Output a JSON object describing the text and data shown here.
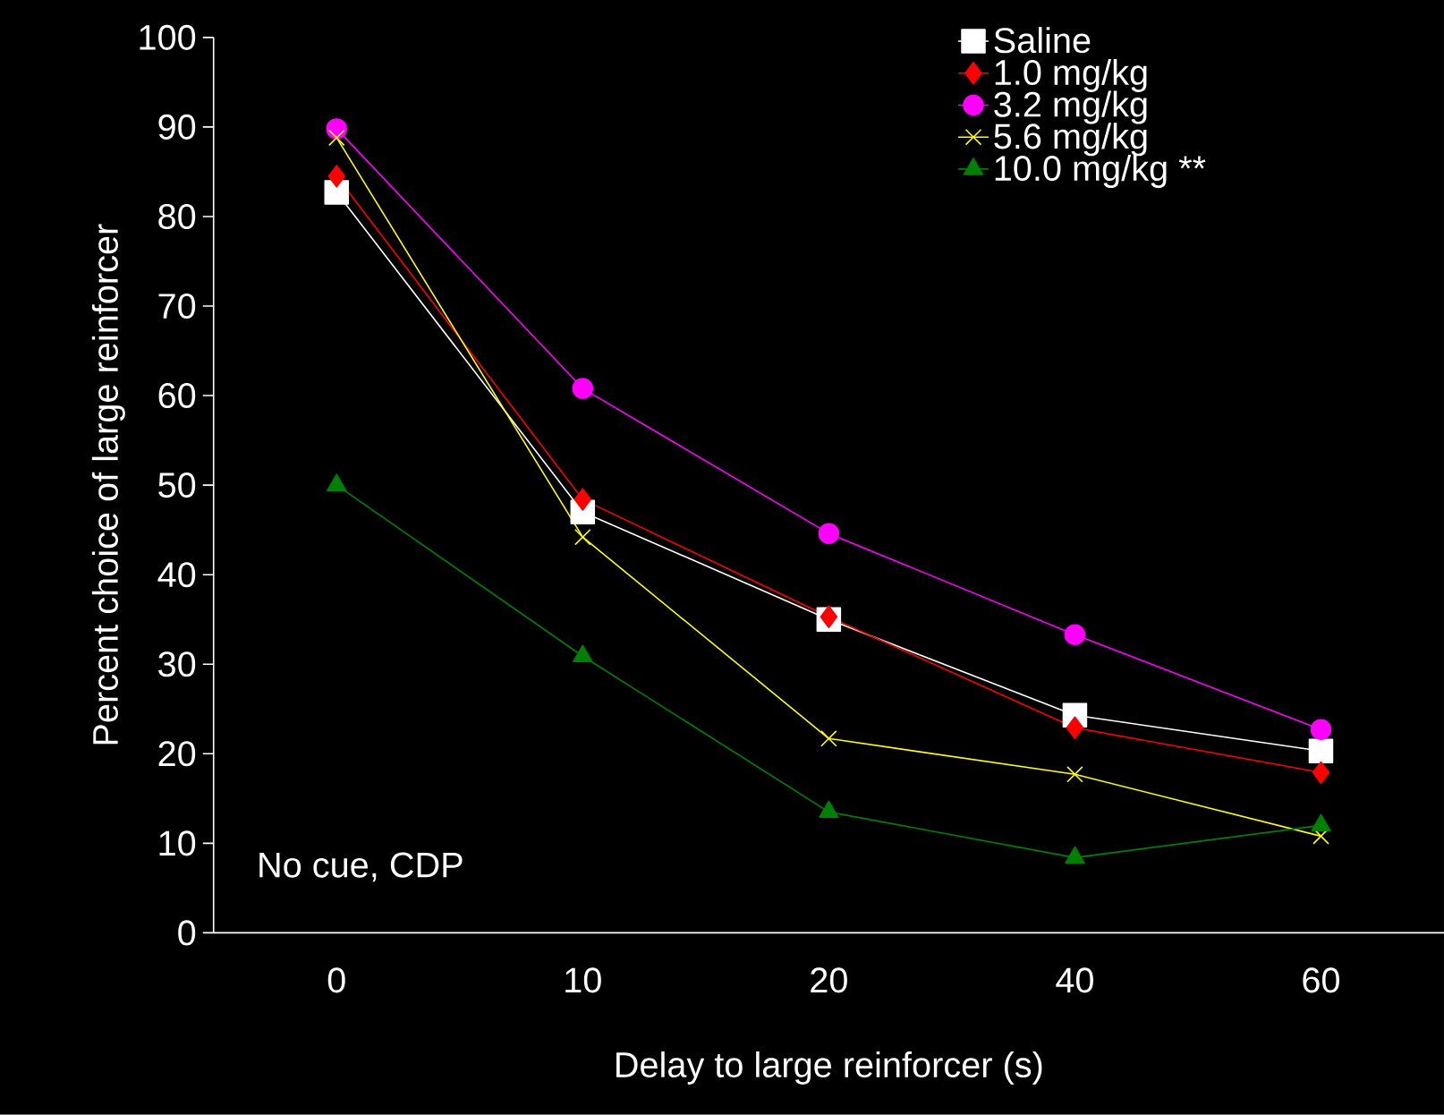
{
  "chart_data": {
    "type": "line",
    "ylabel": "Percent choice of large reinforcer",
    "xlabel": "Delay to large reinforcer (s)",
    "categories": [
      "0",
      "10",
      "20",
      "40",
      "60"
    ],
    "ylim": [
      0,
      100
    ],
    "yticks": [
      0,
      10,
      20,
      30,
      40,
      50,
      60,
      70,
      80,
      90,
      100
    ],
    "legend": "top right",
    "annotations": [
      "No cue, CDP"
    ],
    "series": [
      {
        "name": "Saline",
        "color": "#ffffff",
        "marker": "square",
        "values": [
          82.7,
          47,
          35,
          24.3,
          20.3
        ]
      },
      {
        "name": "1.0 mg/kg",
        "color": "#ff0000",
        "marker": "diamond",
        "values": [
          84.5,
          48.4,
          35.3,
          22.9,
          17.9
        ]
      },
      {
        "name": "3.2 mg/kg",
        "color": "#ff00ff",
        "marker": "circle",
        "values": [
          89.8,
          60.8,
          44.6,
          33.3,
          22.7
        ]
      },
      {
        "name": "5.6 mg/kg",
        "color": "#ffff00",
        "marker": "cross",
        "values": [
          88.8,
          44.2,
          21.7,
          17.7,
          10.8
        ]
      },
      {
        "name": "10.0 mg/kg **",
        "color": "#008000",
        "marker": "triangle",
        "values": [
          50,
          30.9,
          13.5,
          8.4,
          12
        ]
      }
    ]
  }
}
